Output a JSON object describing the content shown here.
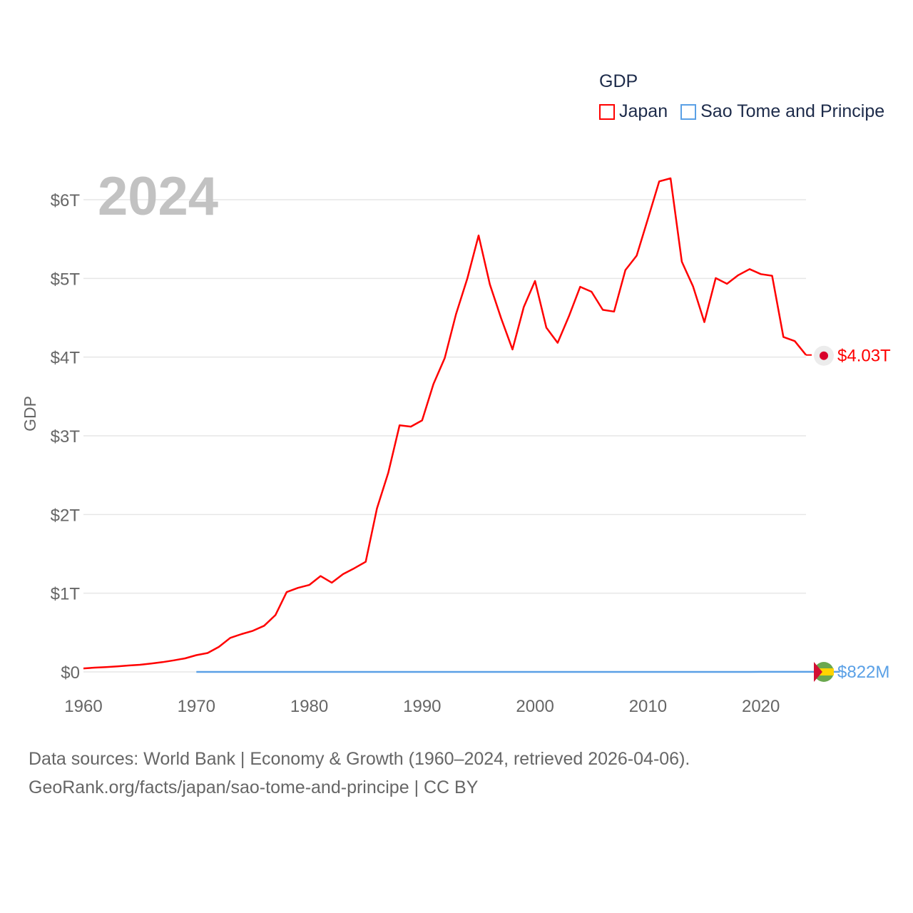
{
  "legend": {
    "title": "GDP",
    "items": [
      {
        "name": "Japan",
        "color": "#ff0000"
      },
      {
        "name": "Sao Tome and Principe",
        "color": "#5aa0e6"
      }
    ]
  },
  "year_label": "2024",
  "end_labels": {
    "japan": "$4.03T",
    "sao_tome": "$822M"
  },
  "footer": {
    "line1": "Data sources: World Bank | Economy & Growth (1960–2024, retrieved 2026-04-06).",
    "line2": "GeoRank.org/facts/japan/sao-tome-and-principe | CC BY"
  },
  "chart_data": {
    "type": "line",
    "title": "GDP",
    "xlabel": "",
    "ylabel": "GDP",
    "xlim": [
      1960,
      2024
    ],
    "ylim": [
      0,
      6
    ],
    "yunit": "trillion USD",
    "xticks": [
      1960,
      1970,
      1980,
      1990,
      2000,
      2010,
      2020
    ],
    "yticks": [
      {
        "v": 0,
        "label": "$0"
      },
      {
        "v": 1,
        "label": "$1T"
      },
      {
        "v": 2,
        "label": "$2T"
      },
      {
        "v": 3,
        "label": "$3T"
      },
      {
        "v": 4,
        "label": "$4T"
      },
      {
        "v": 5,
        "label": "$5T"
      },
      {
        "v": 6,
        "label": "$6T"
      }
    ],
    "grid": true,
    "legend_position": "top-right",
    "series": [
      {
        "name": "Japan",
        "color": "#ff0000",
        "x_start": 1960,
        "values": [
          0.044,
          0.054,
          0.061,
          0.07,
          0.082,
          0.091,
          0.106,
          0.124,
          0.147,
          0.172,
          0.213,
          0.24,
          0.318,
          0.432,
          0.48,
          0.522,
          0.586,
          0.721,
          1.014,
          1.068,
          1.105,
          1.218,
          1.134,
          1.243,
          1.318,
          1.399,
          2.078,
          2.532,
          3.134,
          3.117,
          3.196,
          3.658,
          3.988,
          4.545,
          4.999,
          5.546,
          4.923,
          4.493,
          4.098,
          4.636,
          4.968,
          4.374,
          4.182,
          4.519,
          4.893,
          4.831,
          4.601,
          4.579,
          5.106,
          5.289,
          5.759,
          6.233,
          6.272,
          5.212,
          4.897,
          4.445,
          5.004,
          4.931,
          5.041,
          5.118,
          5.055,
          5.034,
          4.256,
          4.204,
          4.027
        ]
      },
      {
        "name": "Sao Tome and Principe",
        "color": "#5aa0e6",
        "x_start": 1970,
        "values": [
          3e-05,
          3e-05,
          3e-05,
          4e-05,
          5e-05,
          5e-05,
          6e-05,
          7e-05,
          8e-05,
          9e-05,
          0.0001,
          0.0001,
          0.0001,
          0.0001,
          0.0001,
          0.0001,
          0.0001,
          0.0001,
          0.0001,
          0.0001,
          0.0001,
          0.0001,
          0.0001,
          0.0001,
          0.0001,
          0.0001,
          0.0001,
          0.0001,
          0.0001,
          0.0001,
          0.0001,
          0.0001,
          0.0001,
          0.0001,
          0.0001,
          0.0001,
          0.0001,
          0.0002,
          0.0002,
          0.0002,
          0.0002,
          0.0003,
          0.0003,
          0.0003,
          0.0003,
          0.0003,
          0.0004,
          0.0004,
          0.0004,
          0.0004,
          0.0005,
          0.0005,
          0.0006,
          0.0006,
          0.0007,
          0.0008,
          0.0008,
          0.00082
        ]
      }
    ]
  }
}
